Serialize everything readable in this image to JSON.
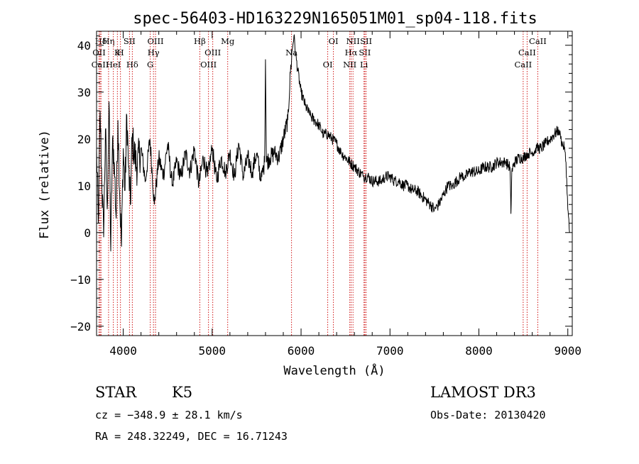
{
  "chart_data": {
    "type": "line",
    "title": "spec-56403-HD163229N165051M01_sp04-118.fits",
    "xlabel": "Wavelength (Å)",
    "ylabel": "Flux (relative)",
    "xlim": [
      3700,
      9050
    ],
    "ylim": [
      -22,
      43
    ],
    "xticks": [
      4000,
      5000,
      6000,
      7000,
      8000,
      9000
    ],
    "yticks": [
      -20,
      -10,
      0,
      10,
      20,
      30,
      40
    ],
    "series": [
      {
        "x": [
          3700,
          3720,
          3740,
          3760,
          3780,
          3800,
          3820,
          3840,
          3860,
          3880,
          3900,
          3920,
          3940,
          3960,
          3980,
          4000,
          4020,
          4040,
          4060,
          4080,
          4100,
          4150,
          4200,
          4250,
          4300,
          4350,
          4400,
          4450,
          4500,
          4550,
          4600,
          4650,
          4700,
          4750,
          4800,
          4850,
          4900,
          4950,
          5000,
          5050,
          5100,
          5150,
          5200,
          5250,
          5300,
          5350,
          5400,
          5450,
          5500,
          5550,
          5590,
          5600,
          5610,
          5650,
          5700,
          5750,
          5800,
          5850,
          5880,
          5900,
          5920,
          5940,
          5960,
          6000,
          6050,
          6100,
          6150,
          6200,
          6250,
          6300,
          6350,
          6400,
          6450,
          6500,
          6550,
          6600,
          6650,
          6700,
          6750,
          6800,
          6850,
          6900,
          6950,
          7000,
          7050,
          7100,
          7150,
          7200,
          7250,
          7300,
          7350,
          7400,
          7450,
          7500,
          7550,
          7600,
          7650,
          7700,
          7750,
          7800,
          7850,
          7900,
          7950,
          8000,
          8050,
          8100,
          8150,
          8200,
          8250,
          8300,
          8350,
          8360,
          8370,
          8400,
          8450,
          8500,
          8550,
          8600,
          8650,
          8700,
          8750,
          8800,
          8850,
          8900,
          8920,
          8940,
          8960,
          8980,
          9000,
          9020
        ],
        "y": [
          18,
          2,
          26,
          10,
          -1,
          22,
          5,
          28,
          -4,
          20,
          15,
          3,
          24,
          8,
          -3,
          18,
          9,
          25,
          14,
          6,
          20,
          14,
          18,
          11,
          20,
          6,
          16,
          12,
          19,
          10,
          15,
          12,
          17,
          13,
          18,
          10,
          16,
          12,
          18,
          11,
          16,
          13,
          17,
          12,
          19,
          12,
          16,
          13,
          17,
          11,
          15,
          37,
          15,
          16,
          17,
          16,
          20,
          24,
          34,
          39,
          42,
          38,
          35,
          30,
          27,
          25,
          24,
          23,
          21,
          21,
          20,
          19,
          17,
          16,
          15,
          14,
          13,
          12,
          12,
          11,
          11,
          11,
          12,
          12,
          11,
          11,
          10,
          10,
          9,
          9,
          8,
          7,
          6,
          5,
          6,
          8,
          10,
          10,
          11,
          12,
          12,
          13,
          13,
          13,
          14,
          14,
          14,
          15,
          15,
          15,
          14,
          4,
          13,
          15,
          16,
          16,
          17,
          17,
          18,
          18,
          19,
          20,
          21,
          22,
          20,
          19,
          18,
          15,
          5,
          0
        ],
        "noise": 2.5
      }
    ],
    "line_markers": [
      {
        "label": "Hδ",
        "x": 3750
      },
      {
        "label": "OII",
        "x": 3728
      },
      {
        "label": "CaII",
        "x": 3740
      },
      {
        "label": "Hη",
        "x": 3835
      },
      {
        "label": "K",
        "x": 3934
      },
      {
        "label": "HeI",
        "x": 3889
      },
      {
        "label": "SII",
        "x": 4070
      },
      {
        "label": "H",
        "x": 3969
      },
      {
        "label": "Hδ",
        "x": 4102
      },
      {
        "label": "OIII",
        "x": 4363
      },
      {
        "label": "Hγ",
        "x": 4340
      },
      {
        "label": "G",
        "x": 4304
      },
      {
        "label": "Hβ",
        "x": 4861
      },
      {
        "label": "OIII",
        "x": 5007
      },
      {
        "label": "OIII",
        "x": 4959
      },
      {
        "label": "Mg",
        "x": 5175
      },
      {
        "label": "Na",
        "x": 5893
      },
      {
        "label": "OI",
        "x": 6300
      },
      {
        "label": "OI",
        "x": 6364
      },
      {
        "label": "Hα",
        "x": 6563
      },
      {
        "label": "NII",
        "x": 6548
      },
      {
        "label": "NII",
        "x": 6584
      },
      {
        "label": "SII",
        "x": 6717
      },
      {
        "label": "Li",
        "x": 6708
      },
      {
        "label": "SII",
        "x": 6731
      },
      {
        "label": "CaII",
        "x": 8542
      },
      {
        "label": "CaII",
        "x": 8498
      },
      {
        "label": "CaII",
        "x": 8662
      }
    ],
    "line_color": "#000000",
    "marker_color": "#cc0000",
    "grid": false,
    "legend": "none"
  },
  "info": {
    "class": "STAR",
    "subclass": "K5",
    "survey": "LAMOST DR3",
    "cz": "cz = −348.9 ± 28.1 km/s",
    "obs_date": "Obs-Date: 20130420",
    "coords": "RA = 248.32249, DEC =  16.71243"
  }
}
